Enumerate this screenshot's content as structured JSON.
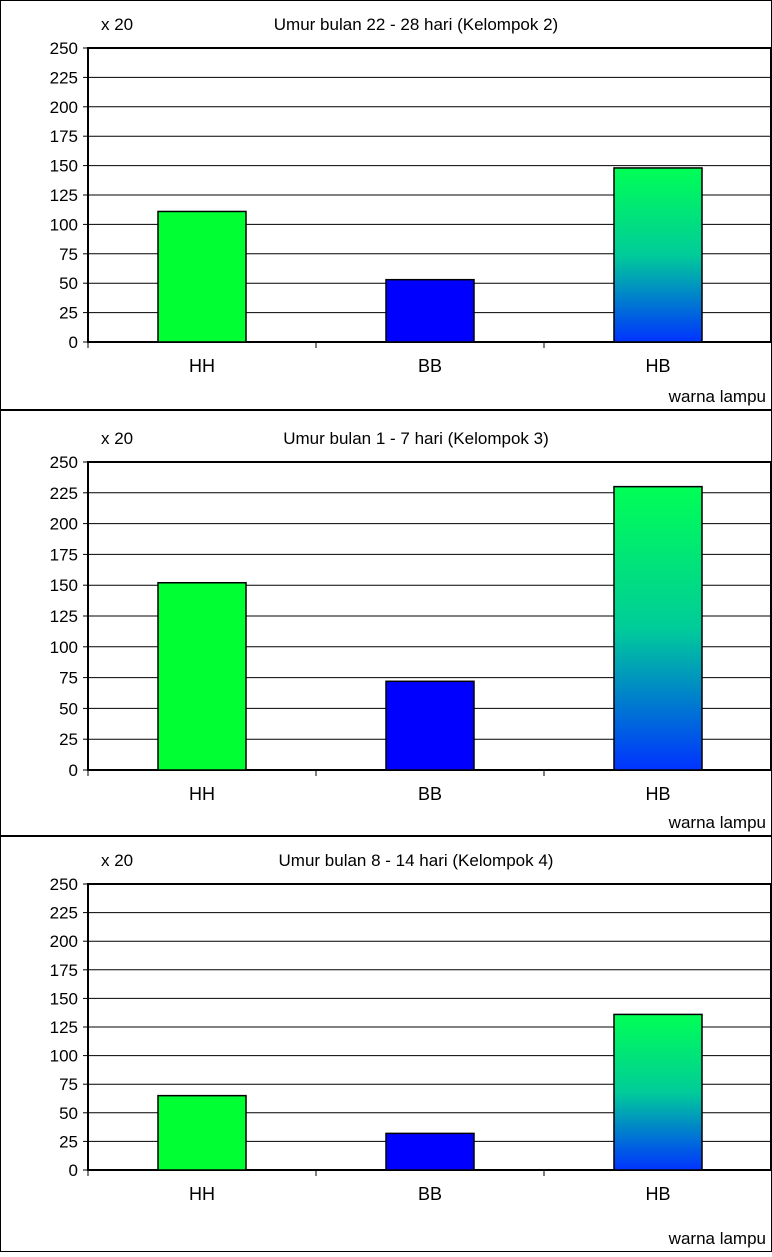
{
  "chart_data": [
    {
      "type": "bar",
      "title": "Umur bulan 22 - 28 hari (Kelompok 2)",
      "ylabel": "x 20",
      "xlabel": "warna lampu",
      "categories": [
        "HH",
        "BB",
        "HB"
      ],
      "values": [
        111,
        53,
        148
      ],
      "ylim": [
        0,
        250
      ],
      "yticks": [
        "0",
        "25",
        "50",
        "75",
        "100",
        "125",
        "150",
        "175",
        "200",
        "225",
        "250"
      ],
      "grid": true,
      "bar_colors": [
        "#00ff33",
        "#0000ff",
        "gradient:#00ff55-#0033ff"
      ]
    },
    {
      "type": "bar",
      "title": "Umur bulan 1 - 7 hari (Kelompok 3)",
      "ylabel": "x 20",
      "xlabel": "warna lampu",
      "categories": [
        "HH",
        "BB",
        "HB"
      ],
      "values": [
        152,
        72,
        230
      ],
      "ylim": [
        0,
        250
      ],
      "yticks": [
        "0",
        "25",
        "50",
        "75",
        "100",
        "125",
        "150",
        "175",
        "200",
        "225",
        "250"
      ],
      "grid": true,
      "bar_colors": [
        "#00ff33",
        "#0000ff",
        "gradient:#00ff55-#0033ff"
      ]
    },
    {
      "type": "bar",
      "title": "Umur bulan 8 - 14 hari (Kelompok 4)",
      "ylabel": "x 20",
      "xlabel": "warna lampu",
      "categories": [
        "HH",
        "BB",
        "HB"
      ],
      "values": [
        65,
        32,
        136
      ],
      "ylim": [
        0,
        250
      ],
      "yticks": [
        "0",
        "25",
        "50",
        "75",
        "100",
        "125",
        "150",
        "175",
        "200",
        "225",
        "250"
      ],
      "grid": true,
      "bar_colors": [
        "#00ff33",
        "#0000ff",
        "gradient:#00ff55-#0033ff"
      ]
    }
  ]
}
